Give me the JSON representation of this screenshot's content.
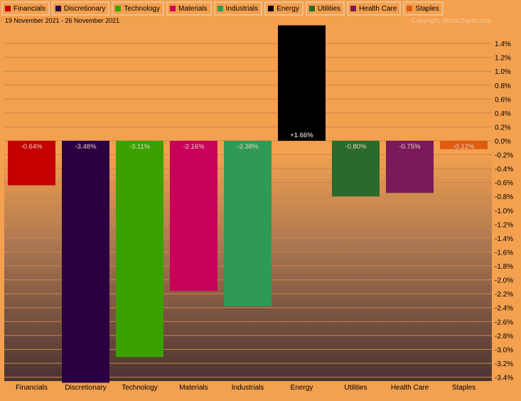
{
  "legend": [
    {
      "label": "Financials",
      "color": "#c40000"
    },
    {
      "label": "Discretionary",
      "color": "#2b0040"
    },
    {
      "label": "Technology",
      "color": "#3aa200"
    },
    {
      "label": "Materials",
      "color": "#c8005a"
    },
    {
      "label": "Industrials",
      "color": "#2f9a55"
    },
    {
      "label": "Energy",
      "color": "#000000"
    },
    {
      "label": "Utilities",
      "color": "#2a6a2a"
    },
    {
      "label": "Health Care",
      "color": "#7a1a5a"
    },
    {
      "label": "Staples",
      "color": "#e05a10"
    }
  ],
  "date_range": "19 November 2021 - 26 November 2021",
  "copyright": "Copyright, StockCharts.com",
  "chart_data": {
    "type": "bar",
    "categories": [
      "Financials",
      "Discretionary",
      "Technology",
      "Materials",
      "Industrials",
      "Energy",
      "Utilities",
      "Health Care",
      "Staples"
    ],
    "values": [
      -0.64,
      -3.48,
      -3.11,
      -2.16,
      -2.38,
      1.66,
      -0.8,
      -0.75,
      -0.12
    ],
    "value_labels": [
      "-0.64%",
      "-3.48%",
      "-3.11%",
      "-2.16%",
      "-2.38%",
      "+1.66%",
      "-0.80%",
      "-0.75%",
      "-0.12%"
    ],
    "colors": [
      "#c40000",
      "#2b0040",
      "#3aa200",
      "#c8005a",
      "#2f9a55",
      "#000000",
      "#2a6a2a",
      "#7a1a5a",
      "#e05a10"
    ],
    "ylim": [
      -3.5,
      1.6
    ],
    "yticks": [
      1.4,
      1.2,
      1.0,
      0.8,
      0.6,
      0.4,
      0.2,
      0.0,
      -0.2,
      -0.4,
      -0.6,
      -0.8,
      -1.0,
      -1.2,
      -1.4,
      -1.6,
      -1.8,
      -2.0,
      -2.2,
      -2.4,
      -2.6,
      -2.8,
      -3.0,
      -3.2,
      -3.4
    ],
    "ytick_labels": [
      "1.4%",
      "1.2%",
      "1.0%",
      "0.8%",
      "0.6%",
      "0.4%",
      "0.2%",
      "0.0%",
      "-0.2%",
      "-0.4%",
      "-0.6%",
      "-0.8%",
      "-1.0%",
      "-1.2%",
      "-1.4%",
      "-1.6%",
      "-1.8%",
      "-2.0%",
      "-2.2%",
      "-2.4%",
      "-2.6%",
      "-2.8%",
      "-3.0%",
      "-3.2%",
      "-3.4%"
    ],
    "grid": true
  }
}
